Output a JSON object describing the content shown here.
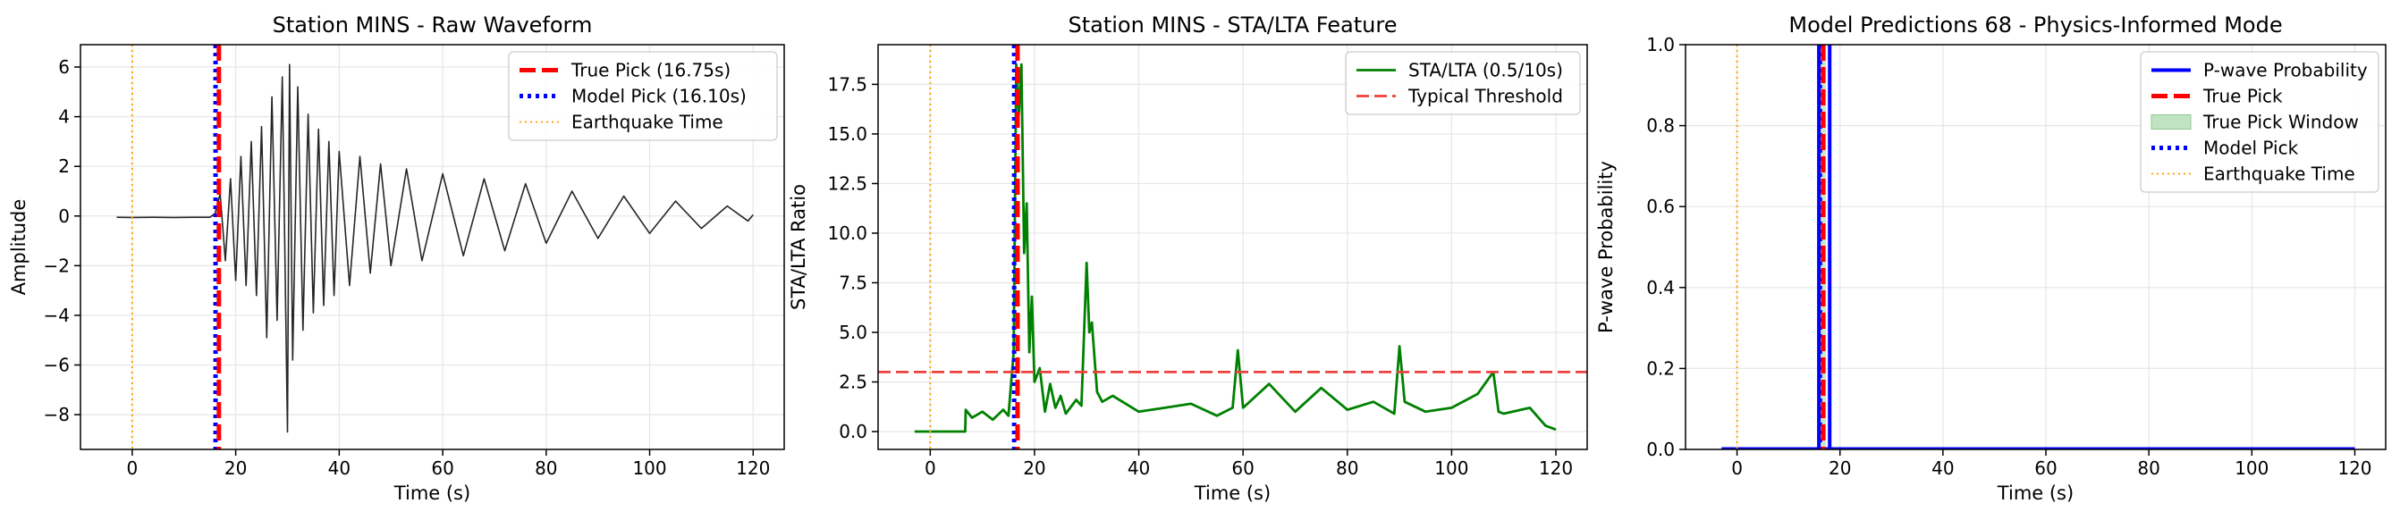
{
  "colors": {
    "true_pick": "#ff0000",
    "model_pick": "#0000ff",
    "earthquake": "#ffa500",
    "waveform": "#262626",
    "sta_lta": "#008000",
    "threshold": "#ef4040",
    "probability": "#0000ff",
    "window_fill": "#c2e3c2",
    "grid": "#e6e6e6"
  },
  "chart_data": [
    {
      "type": "line",
      "title": "Station MINS - Raw Waveform",
      "xlabel": "Time (s)",
      "ylabel": "Amplitude",
      "xlim": [
        -10,
        126
      ],
      "ylim": [
        -9.4,
        6.9
      ],
      "xticks": [
        0,
        20,
        40,
        60,
        80,
        100,
        120
      ],
      "yticks": [
        -8,
        -6,
        -4,
        -2,
        0,
        2,
        4,
        6
      ],
      "grid": true,
      "legend_position": "top-right",
      "legend": [
        {
          "label": "True Pick (16.75s)",
          "style": "true_pick"
        },
        {
          "label": "Model Pick (16.10s)",
          "style": "model_pick"
        },
        {
          "label": "Earthquake Time",
          "style": "earthquake"
        }
      ],
      "vlines": [
        {
          "x": 0,
          "style": "earthquake"
        },
        {
          "x": 16.1,
          "style": "model_pick"
        },
        {
          "x": 16.75,
          "style": "true_pick"
        }
      ],
      "series": [
        {
          "style": "waveform",
          "x": [
            -3,
            0,
            4,
            8,
            12,
            15,
            16,
            17,
            18,
            19,
            20,
            21,
            22,
            23,
            24,
            25,
            26,
            27,
            28,
            29,
            30,
            30.4,
            31,
            32,
            33,
            34,
            35,
            36,
            37,
            38,
            39,
            40,
            42,
            44,
            46,
            48,
            50,
            53,
            56,
            60,
            64,
            68,
            72,
            76,
            80,
            85,
            90,
            95,
            100,
            105,
            110,
            115,
            119,
            120
          ],
          "y": [
            -0.05,
            -0.06,
            -0.05,
            -0.06,
            -0.05,
            -0.05,
            0.1,
            0.9,
            -1.8,
            1.5,
            -2.6,
            2.4,
            -2.8,
            3.0,
            -3.2,
            3.6,
            -4.9,
            4.8,
            -4.2,
            5.6,
            -8.7,
            6.1,
            -5.8,
            5.2,
            -4.6,
            4.1,
            -3.9,
            3.5,
            -3.6,
            3.0,
            -3.2,
            2.6,
            -2.8,
            2.4,
            -2.3,
            2.1,
            -2.0,
            1.9,
            -1.8,
            1.7,
            -1.6,
            1.5,
            -1.4,
            1.3,
            -1.1,
            1.0,
            -0.9,
            0.8,
            -0.7,
            0.6,
            -0.5,
            0.4,
            -0.2,
            0.05
          ]
        }
      ]
    },
    {
      "type": "line",
      "title": "Station MINS - STA/LTA Feature",
      "xlabel": "Time (s)",
      "ylabel": "STA/LTA Ratio",
      "xlim": [
        -10,
        126
      ],
      "ylim": [
        -0.9,
        19.5
      ],
      "xticks": [
        0,
        20,
        40,
        60,
        80,
        100,
        120
      ],
      "yticks": [
        0.0,
        2.5,
        5.0,
        7.5,
        10.0,
        12.5,
        15.0,
        17.5
      ],
      "ytick_labels": [
        "0.0",
        "2.5",
        "5.0",
        "7.5",
        "10.0",
        "12.5",
        "15.0",
        "17.5"
      ],
      "grid": true,
      "legend_position": "top-right",
      "legend": [
        {
          "label": "STA/LTA (0.5/10s)",
          "style": "sta_lta"
        },
        {
          "label": "Typical Threshold",
          "style": "threshold"
        }
      ],
      "hlines": [
        {
          "y": 3.0,
          "style": "threshold"
        }
      ],
      "vlines": [
        {
          "x": 0,
          "style": "earthquake"
        },
        {
          "x": 16.1,
          "style": "model_pick"
        },
        {
          "x": 16.75,
          "style": "true_pick"
        }
      ],
      "series": [
        {
          "style": "sta_lta",
          "x": [
            -3,
            0,
            3,
            6.7,
            6.8,
            8,
            10,
            12,
            14,
            15,
            16,
            16.5,
            17,
            17.5,
            18,
            18.5,
            19,
            19.5,
            20,
            21,
            22,
            23,
            24,
            25,
            26,
            28,
            29,
            30,
            30.5,
            31,
            32,
            33,
            35,
            40,
            45,
            50,
            55,
            58,
            59,
            60,
            65,
            70,
            75,
            80,
            85,
            89,
            90,
            91,
            95,
            100,
            105,
            108,
            109,
            110,
            115,
            118,
            120
          ],
          "y": [
            0,
            0,
            0,
            0,
            1.1,
            0.7,
            1.0,
            0.6,
            1.1,
            0.8,
            4.0,
            18.5,
            16.0,
            18.5,
            9.0,
            11.5,
            4.0,
            6.8,
            2.5,
            3.2,
            1.0,
            2.4,
            1.2,
            1.8,
            0.9,
            1.6,
            1.3,
            8.5,
            5.0,
            5.5,
            2.0,
            1.5,
            1.8,
            1.0,
            1.2,
            1.4,
            0.8,
            1.2,
            4.1,
            1.2,
            2.4,
            1.0,
            2.2,
            1.1,
            1.5,
            0.9,
            4.3,
            1.5,
            1.0,
            1.2,
            1.9,
            3.0,
            1.0,
            0.9,
            1.2,
            0.3,
            0.1
          ]
        }
      ]
    },
    {
      "type": "line",
      "title": "Model Predictions 68 - Physics-Informed Mode",
      "xlabel": "Time (s)",
      "ylabel": "P-wave Probability",
      "xlim": [
        -10,
        126
      ],
      "ylim": [
        0.0,
        1.0
      ],
      "xticks": [
        0,
        20,
        40,
        60,
        80,
        100,
        120
      ],
      "yticks": [
        0.0,
        0.2,
        0.4,
        0.6,
        0.8,
        1.0
      ],
      "ytick_labels": [
        "0.0",
        "0.2",
        "0.4",
        "0.6",
        "0.8",
        "1.0"
      ],
      "grid": true,
      "legend_position": "top-right",
      "legend": [
        {
          "label": "P-wave Probability",
          "style": "probability"
        },
        {
          "label": "True Pick",
          "style": "true_pick"
        },
        {
          "label": "True Pick Window",
          "style": "window"
        },
        {
          "label": "Model Pick",
          "style": "model_pick"
        },
        {
          "label": "Earthquake Time",
          "style": "earthquake"
        }
      ],
      "spans": [
        {
          "x0": 16.25,
          "x1": 17.25,
          "style": "window"
        }
      ],
      "vlines": [
        {
          "x": 0,
          "style": "earthquake"
        },
        {
          "x": 15.9,
          "style": "probability"
        },
        {
          "x": 18.0,
          "style": "probability"
        },
        {
          "x": 16.1,
          "style": "model_pick"
        },
        {
          "x": 16.75,
          "style": "true_pick"
        }
      ],
      "series": [
        {
          "style": "probability",
          "x": [
            -3,
            120
          ],
          "y": [
            0.001,
            0.001
          ]
        }
      ]
    }
  ]
}
